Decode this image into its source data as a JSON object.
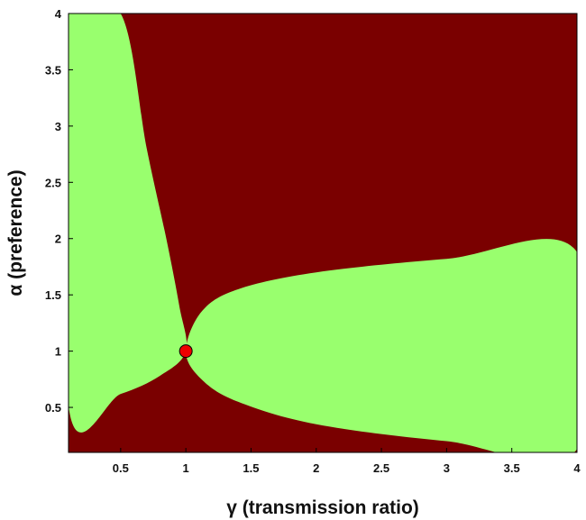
{
  "chart_data": {
    "type": "heatmap",
    "title": "",
    "xlabel": "γ (transmission ratio)",
    "ylabel": "α (preference)",
    "xlim": [
      0.1,
      4
    ],
    "ylim": [
      0.1,
      4
    ],
    "xticks": [
      0.5,
      1,
      1.5,
      2,
      2.5,
      3,
      3.5,
      4
    ],
    "yticks": [
      0.5,
      1,
      1.5,
      2,
      2.5,
      3,
      3.5,
      4
    ],
    "xtick_labels": [
      "0.5",
      "1",
      "1.5",
      "2",
      "2.5",
      "3",
      "3.5",
      "4"
    ],
    "ytick_labels": [
      "0.5",
      "1",
      "1.5",
      "2",
      "2.5",
      "3",
      "3.5",
      "4"
    ],
    "grid": false,
    "legend": "none",
    "colors": {
      "background_region": "#7a0000",
      "highlight_region": "#99ff6e",
      "marker": "#ee0000"
    },
    "regions": [
      {
        "color": "#99ff6e",
        "boundary": [
          {
            "x": 0.1,
            "y": 0.51
          },
          {
            "x": 0.5,
            "y": 0.62
          },
          {
            "x": 0.8,
            "y": 0.78
          },
          {
            "x": 1.0,
            "y": 1.0
          },
          {
            "x": 0.95,
            "y": 1.4
          },
          {
            "x": 0.85,
            "y": 2.0
          },
          {
            "x": 0.7,
            "y": 2.8
          },
          {
            "x": 0.5,
            "y": 4.0
          },
          {
            "x": 0.1,
            "y": 4.0
          }
        ]
      },
      {
        "color": "#99ff6e",
        "boundary": [
          {
            "x": 1.0,
            "y": 1.0
          },
          {
            "x": 1.12,
            "y": 1.35
          },
          {
            "x": 1.4,
            "y": 1.55
          },
          {
            "x": 2.0,
            "y": 1.7
          },
          {
            "x": 3.0,
            "y": 1.82
          },
          {
            "x": 4.0,
            "y": 1.88
          },
          {
            "x": 4.0,
            "y": 0.13
          },
          {
            "x": 3.0,
            "y": 0.2
          },
          {
            "x": 2.0,
            "y": 0.35
          },
          {
            "x": 1.4,
            "y": 0.55
          },
          {
            "x": 1.12,
            "y": 0.75
          }
        ]
      }
    ],
    "points": [
      {
        "x": 1.0,
        "y": 1.0
      }
    ]
  }
}
